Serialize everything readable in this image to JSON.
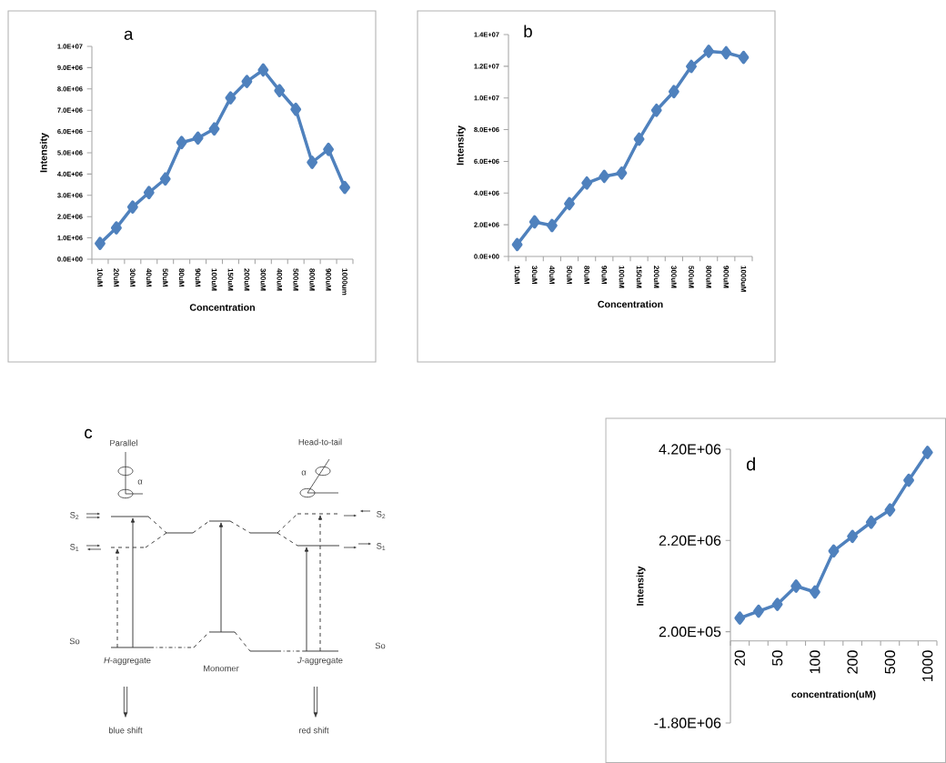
{
  "chart_data": [
    {
      "type": "line",
      "title": "a",
      "xlabel": "Concentration",
      "ylabel": "Intensity",
      "marker": "diamond",
      "categories": [
        "10uM",
        "20uM",
        "30uM",
        "40uM",
        "50uM",
        "80uM",
        "90uM",
        "100uM",
        "150uM",
        "200uM",
        "300uM",
        "400uM",
        "500uM",
        "800uM",
        "900uM",
        "1000um"
      ],
      "series": [
        {
          "color": "#4f81bd",
          "values": [
            740000,
            1470000,
            2450000,
            3130000,
            3770000,
            5480000,
            5690000,
            6120000,
            7580000,
            8350000,
            8890000,
            7920000,
            7040000,
            4550000,
            5160000,
            3370000
          ]
        }
      ],
      "ylim": [
        0,
        10000000
      ],
      "yticks": [
        {
          "value": 0,
          "label": "0.0E+00"
        },
        {
          "value": 1000000,
          "label": "1.0E+06"
        },
        {
          "value": 2000000,
          "label": "2.0E+06"
        },
        {
          "value": 3000000,
          "label": "3.0E+06"
        },
        {
          "value": 4000000,
          "label": "4.0E+06"
        },
        {
          "value": 5000000,
          "label": "5.0E+06"
        },
        {
          "value": 6000000,
          "label": "6.0E+06"
        },
        {
          "value": 7000000,
          "label": "7.0E+06"
        },
        {
          "value": 8000000,
          "label": "8.0E+06"
        },
        {
          "value": 9000000,
          "label": "9.0E+06"
        },
        {
          "value": 10000000,
          "label": "1.0E+07"
        }
      ]
    },
    {
      "type": "line",
      "title": "b",
      "xlabel": "Concentration",
      "ylabel": "Intensity",
      "marker": "diamond",
      "categories": [
        "10uM",
        "30uM",
        "40uM",
        "50uM",
        "80uM",
        "90uM",
        "100uM",
        "150uM",
        "200uM",
        "300uM",
        "500uM",
        "800uM",
        "900uM",
        "1000uM"
      ],
      "series": [
        {
          "color": "#4f81bd",
          "values": [
            750000,
            2180000,
            1950000,
            3330000,
            4630000,
            5050000,
            5260000,
            7400000,
            9220000,
            10400000,
            11990000,
            12940000,
            12850000,
            12560000
          ]
        }
      ],
      "ylim": [
        0,
        14000000
      ],
      "yticks": [
        {
          "value": 0,
          "label": "0.0E+00"
        },
        {
          "value": 2000000,
          "label": "2.0E+06"
        },
        {
          "value": 4000000,
          "label": "4.0E+06"
        },
        {
          "value": 6000000,
          "label": "6.0E+06"
        },
        {
          "value": 8000000,
          "label": "8.0E+06"
        },
        {
          "value": 10000000,
          "label": "1.0E+07"
        },
        {
          "value": 12000000,
          "label": "1.2E+07"
        },
        {
          "value": 14000000,
          "label": "1.4E+07"
        }
      ]
    },
    {
      "type": "other",
      "title": "c",
      "annotations": [
        "Parallel",
        "Head-to-tail",
        "α",
        "α",
        "S$_{2}$",
        "S$_{1}$",
        "So",
        "S$_{2}$",
        "S$_{1}$",
        "So",
        "*H*-aggregate",
        "Monomer",
        "*J*-aggregate",
        "blue shift",
        "red shift"
      ]
    },
    {
      "type": "line",
      "title": "d",
      "xlabel": "concentration(uM)",
      "ylabel": "Intensity",
      "marker": "diamond",
      "categories": [
        "20",
        null,
        "50",
        null,
        "100",
        null,
        "200",
        null,
        "500",
        null,
        "1000"
      ],
      "series": [
        {
          "color": "#4f81bd",
          "values": [
            500000,
            650000,
            800000,
            1200000,
            1070000,
            1970000,
            2290000,
            2600000,
            2870000,
            3520000,
            4130000
          ]
        }
      ],
      "ylim": [
        -1800000,
        4200000
      ],
      "yticks": [
        {
          "value": -1800000,
          "label": "-1.80E+06"
        },
        {
          "value": 200000,
          "label": "2.00E+05"
        },
        {
          "value": 2200000,
          "label": "2.20E+06"
        },
        {
          "value": 4200000,
          "label": "4.20E+06"
        }
      ]
    }
  ]
}
